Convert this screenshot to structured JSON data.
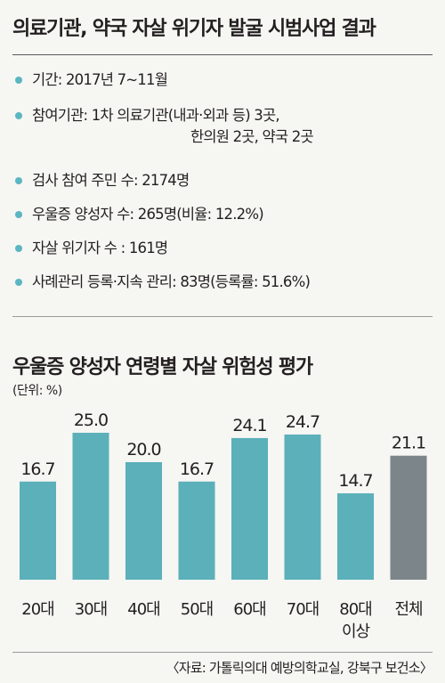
{
  "summary": {
    "title": "의료기관, 약국 자살 위기자 발굴 시범사업 결과",
    "items": [
      {
        "text": "기간: 2017년 7~11월"
      },
      {
        "text": "참여기관: 1차 의료기관(내과·외과 등) 3곳,",
        "cont": "한의원 2곳, 약국 2곳"
      },
      {
        "text": "검사 참여 주민 수: 2174명"
      },
      {
        "text": "우울증 양성자 수: 265명(비율: 12.2%)"
      },
      {
        "text": "자살 위기자 수 : 161명"
      },
      {
        "text": "사례관리 등록·지속 관리: 83명(등록률: 51.6%)"
      }
    ]
  },
  "chart_data": {
    "type": "bar",
    "title": "우울증 양성자 연령별 자살 위험성 평가",
    "unit_label": "(단위: %)",
    "categories": [
      "20대",
      "30대",
      "40대",
      "50대",
      "60대",
      "70대",
      "80대\n이상",
      "전체"
    ],
    "values": [
      16.7,
      25.0,
      20.0,
      16.7,
      24.1,
      24.7,
      14.7,
      21.1
    ],
    "value_labels": [
      "16.7",
      "25.0",
      "20.0",
      "16.7",
      "24.1",
      "24.7",
      "14.7",
      "21.1"
    ],
    "colors": [
      "#5bb0ba",
      "#5bb0ba",
      "#5bb0ba",
      "#5bb0ba",
      "#5bb0ba",
      "#5bb0ba",
      "#5bb0ba",
      "#7c8589"
    ],
    "ylim": [
      0,
      25
    ],
    "grid": false,
    "legend": "none"
  },
  "source": "〈자료: 가톨릭의대 예방의학교실, 강북구 보건소〉"
}
